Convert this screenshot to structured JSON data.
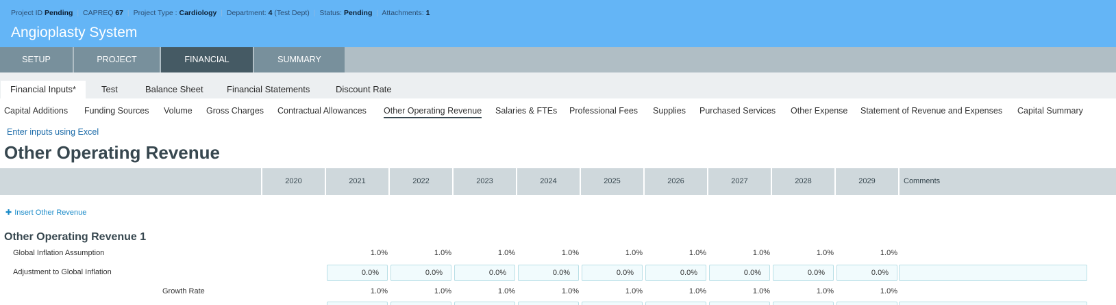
{
  "header": {
    "meta": {
      "project_id_label": "Project ID",
      "project_id_value": "Pending",
      "capreq_label": "CAPREQ",
      "capreq_value": "67",
      "project_type_label": "Project Type :",
      "project_type_value": "Cardiology",
      "department_label": "Department:",
      "department_value": "4",
      "department_note": "(Test Dept)",
      "status_label": "Status:",
      "status_value": "Pending",
      "attachments_label": "Attachments:",
      "attachments_value": "1",
      "separator": "|"
    },
    "title": "Angioplasty System"
  },
  "main_tabs": [
    {
      "label": "SETUP",
      "active": false
    },
    {
      "label": "PROJECT",
      "active": false
    },
    {
      "label": "FINANCIAL",
      "active": true
    },
    {
      "label": "SUMMARY",
      "active": false
    }
  ],
  "sub_tabs": [
    {
      "label": "Financial Inputs*",
      "active": true
    },
    {
      "label": "Test",
      "active": false
    },
    {
      "label": "Balance Sheet",
      "active": false
    },
    {
      "label": "Financial Statements",
      "active": false
    },
    {
      "label": "Discount Rate",
      "active": false
    }
  ],
  "section_nav": [
    {
      "label": "Capital Additions",
      "active": false
    },
    {
      "label": "Funding Sources",
      "active": false
    },
    {
      "label": "Volume",
      "active": false
    },
    {
      "label": "Gross Charges",
      "active": false
    },
    {
      "label": "Contractual Allowances",
      "active": false
    },
    {
      "label": "Other Operating Revenue",
      "active": true
    },
    {
      "label": "Salaries & FTEs",
      "active": false
    },
    {
      "label": "Professional Fees",
      "active": false
    },
    {
      "label": "Supplies",
      "active": false
    },
    {
      "label": "Purchased Services",
      "active": false
    },
    {
      "label": "Other Expense",
      "active": false
    },
    {
      "label": "Statement of Revenue and Expenses",
      "active": false
    },
    {
      "label": "Capital Summary",
      "active": false
    }
  ],
  "excel_link": "Enter inputs using Excel",
  "page_title": "Other Operating Revenue",
  "table": {
    "years": [
      "2020",
      "2021",
      "2022",
      "2023",
      "2024",
      "2025",
      "2026",
      "2027",
      "2028",
      "2029"
    ],
    "comments_header": "Comments",
    "insert_label": "Insert Other Revenue",
    "group_title": "Other Operating Revenue 1",
    "rows": {
      "global_inflation": {
        "label": "Global Inflation Assumption",
        "values": [
          "1.0%",
          "1.0%",
          "1.0%",
          "1.0%",
          "1.0%",
          "1.0%",
          "1.0%",
          "1.0%",
          "1.0%"
        ]
      },
      "adjustment": {
        "label": "Adjustment to Global Inflation",
        "values": [
          "0.0%",
          "0.0%",
          "0.0%",
          "0.0%",
          "0.0%",
          "0.0%",
          "0.0%",
          "0.0%",
          "0.0%"
        ]
      },
      "growth_rate": {
        "label": "Growth Rate",
        "values": [
          "1.0%",
          "1.0%",
          "1.0%",
          "1.0%",
          "1.0%",
          "1.0%",
          "1.0%",
          "1.0%",
          "1.0%"
        ]
      }
    }
  },
  "colors": {
    "header_bg": "#64b5f6",
    "tab_bg": "#78909c",
    "tab_active_bg": "#455a64",
    "link": "#1a6aa8"
  }
}
